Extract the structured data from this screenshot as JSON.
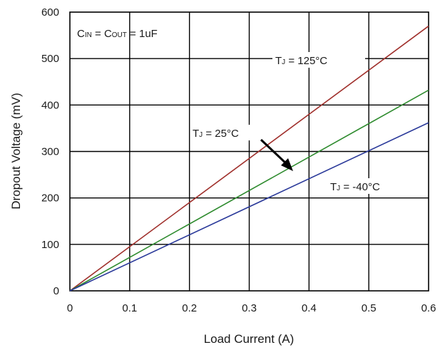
{
  "chart_data": {
    "type": "line",
    "title": "",
    "xlabel": "Load Current (A)",
    "ylabel": "Dropout Voltage  (mV)",
    "xlim": [
      0,
      0.6
    ],
    "ylim": [
      0,
      600
    ],
    "x_ticks": [
      "0",
      "0.1",
      "0.2",
      "0.3",
      "0.4",
      "0.5",
      "0.6"
    ],
    "y_ticks": [
      "0",
      "100",
      "200",
      "300",
      "400",
      "500",
      "600"
    ],
    "grid": true,
    "series": [
      {
        "name": "TJ = 125°C",
        "color": "#a0302c",
        "x": [
          0,
          0.6
        ],
        "y": [
          0,
          570
        ]
      },
      {
        "name": "TJ = 25°C",
        "color": "#2e8b2e",
        "x": [
          0,
          0.6
        ],
        "y": [
          0,
          432
        ]
      },
      {
        "name": "TJ = -40°C",
        "color": "#2b3a9a",
        "x": [
          0,
          0.6
        ],
        "y": [
          0,
          362
        ]
      }
    ],
    "annotations": {
      "conditions": {
        "cin": "C",
        "cin_sub": "IN",
        "eq1": " = C",
        "cout_sub": "OUT",
        "rest": " = 1uF"
      },
      "t125": {
        "t": "T",
        "sub": "J",
        "rest": " = 125°C"
      },
      "t25": {
        "t": "T",
        "sub": "J",
        "rest": " = 25°C"
      },
      "tm40": {
        "t": "T",
        "sub": "J",
        "rest": " = -40°C"
      }
    }
  }
}
